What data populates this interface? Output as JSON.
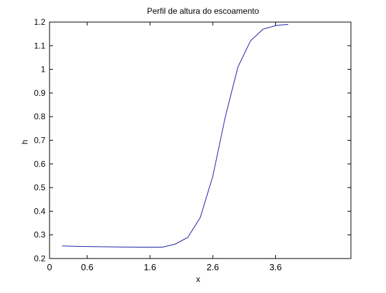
{
  "chart_data": {
    "type": "line",
    "title": "Perfil de altura do escoamento",
    "xlabel": "x",
    "ylabel": "h",
    "xlim": [
      0,
      4.8
    ],
    "ylim": [
      0.2,
      1.2
    ],
    "xticks": [
      0,
      0.6,
      1.6,
      2.6,
      3.6
    ],
    "xtick_labels": [
      "0",
      "0.6",
      "1.6",
      "2.6",
      "3.6"
    ],
    "yticks": [
      0.2,
      0.3,
      0.4,
      0.5,
      0.6,
      0.7,
      0.8,
      0.9,
      1.0,
      1.1,
      1.2
    ],
    "ytick_labels": [
      "0.2",
      "0.3",
      "0.4",
      "0.5",
      "0.6",
      "0.7",
      "0.8",
      "0.9",
      "1",
      "1.1",
      "1.2"
    ],
    "grid": false,
    "series": [
      {
        "color": "#1f1fa8",
        "x": [
          0.2,
          0.5,
          0.8,
          1.1,
          1.4,
          1.6,
          1.8,
          2.0,
          2.2,
          2.4,
          2.6,
          2.8,
          3.0,
          3.2,
          3.4,
          3.6,
          3.7,
          3.8
        ],
        "y": [
          0.253,
          0.251,
          0.25,
          0.249,
          0.248,
          0.248,
          0.248,
          0.261,
          0.289,
          0.373,
          0.548,
          0.8,
          1.01,
          1.12,
          1.17,
          1.185,
          1.188,
          1.19
        ]
      }
    ]
  }
}
